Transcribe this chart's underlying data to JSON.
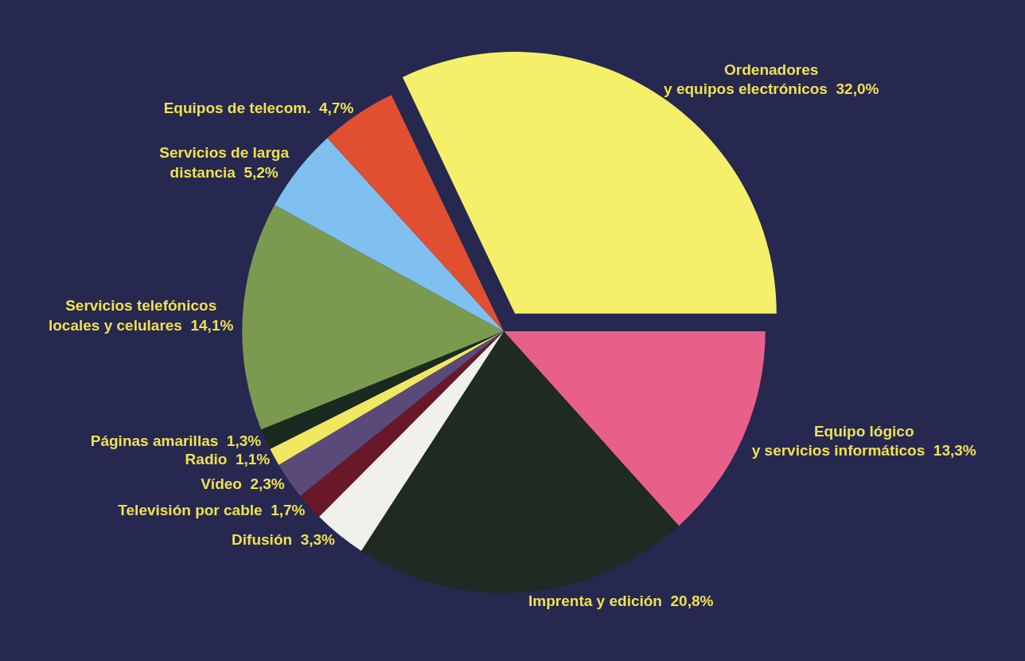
{
  "chart_data": {
    "type": "pie",
    "categories": [
      "Ordenadores\ny equipos electrónicos",
      "Equipo lógico\ny servicios informáticos",
      "Imprenta y edición",
      "Difusión",
      "Televisión por cable",
      "Vídeo",
      "Radio",
      "Páginas amarillas",
      "Servicios telefónicos\nlocales y celulares",
      "Servicios de larga\ndistancia",
      "Equipos de telecom."
    ],
    "values": [
      32.0,
      13.3,
      20.8,
      3.3,
      1.7,
      2.3,
      1.1,
      1.3,
      14.1,
      5.2,
      4.7
    ],
    "value_labels": [
      "32,0%",
      "13,3%",
      "20,8%",
      "3,3%",
      "1,7%",
      "2,3%",
      "1,1%",
      "1,3%",
      "14,1%",
      "5,2%",
      "4,7%"
    ],
    "colors": [
      "#f5f06a",
      "#e8608a",
      "#1e2a22",
      "#f0f0ec",
      "#6a1828",
      "#5a4a7a",
      "#f0e860",
      "#1a2a20",
      "#7a9a50",
      "#80c0f0",
      "#e05030"
    ],
    "legend": false
  }
}
